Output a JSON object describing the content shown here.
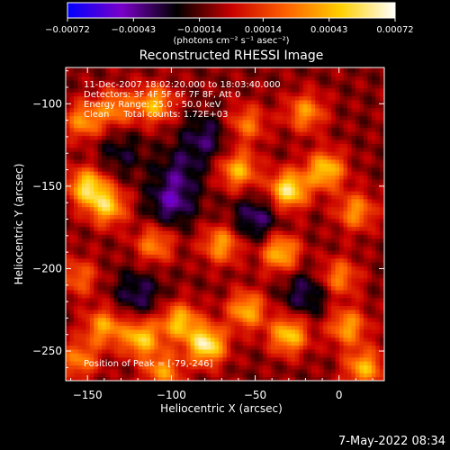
{
  "chart_data": {
    "type": "heatmap",
    "title": "Reconstructed RHESSI Image",
    "xlabel": "Heliocentric X (arcsec)",
    "ylabel": "Heliocentric Y (arcsec)",
    "xlim": [
      -163,
      27
    ],
    "ylim": [
      -268,
      -78
    ],
    "x_ticks": [
      -150,
      -100,
      -50,
      0
    ],
    "y_ticks": [
      -100,
      -150,
      -200,
      -250
    ],
    "x_tick_labels": [
      "−150",
      "−100",
      "−50",
      "0"
    ],
    "y_tick_labels": [
      "−100",
      "−150",
      "−200",
      "−250"
    ],
    "colorbar": {
      "range": [
        -0.00072,
        0.00072
      ],
      "ticks": [
        -0.00072,
        -0.00043,
        -0.00014,
        0.00014,
        0.00043,
        0.00072
      ],
      "tick_labels": [
        "−0.00072",
        "−0.00043",
        "−0.00014",
        "0.00014",
        "0.00043",
        "0.00072"
      ],
      "unit_label": "(photons cm⁻² s⁻¹ asec⁻²)",
      "colors": [
        "#0000ff",
        "#7a00c8",
        "#000000",
        "#c80000",
        "#ff6000",
        "#ffd000",
        "#ffffff"
      ]
    },
    "annotations": [
      "11-Dec-2007 18:02:20.000 to 18:03:40.000",
      "Detectors: 3F 4F 5F 6F 7F 8F, Att 0",
      "Energy Range: 25.0 - 50.0 keV",
      "Clean     Total counts: 1.72E+03"
    ],
    "peak_label": "Position of Peak = [-79,-246]",
    "peak": [
      -79,
      -246
    ],
    "hotspots": [
      {
        "x": -152,
        "y": -110,
        "v": 0.6
      },
      {
        "x": -133,
        "y": -102,
        "v": 0.55
      },
      {
        "x": -110,
        "y": -100,
        "v": 0.7
      },
      {
        "x": -55,
        "y": -112,
        "v": 0.5
      },
      {
        "x": -20,
        "y": -105,
        "v": 0.6
      },
      {
        "x": -150,
        "y": -150,
        "v": 0.85
      },
      {
        "x": -138,
        "y": -162,
        "v": 0.75
      },
      {
        "x": -60,
        "y": -140,
        "v": 0.7
      },
      {
        "x": -30,
        "y": -152,
        "v": 0.95
      },
      {
        "x": -8,
        "y": -140,
        "v": 0.8
      },
      {
        "x": 10,
        "y": -165,
        "v": 0.6
      },
      {
        "x": -110,
        "y": -185,
        "v": 0.55
      },
      {
        "x": -70,
        "y": -185,
        "v": 0.65
      },
      {
        "x": -35,
        "y": -190,
        "v": 0.75
      },
      {
        "x": 0,
        "y": -205,
        "v": 0.55
      },
      {
        "x": -155,
        "y": -205,
        "v": 0.45
      },
      {
        "x": -140,
        "y": -235,
        "v": 0.65
      },
      {
        "x": -118,
        "y": -242,
        "v": 0.8
      },
      {
        "x": -95,
        "y": -232,
        "v": 0.75
      },
      {
        "x": -79,
        "y": -246,
        "v": 1.0
      },
      {
        "x": -55,
        "y": -225,
        "v": 0.7
      },
      {
        "x": -30,
        "y": -240,
        "v": 0.8
      },
      {
        "x": 5,
        "y": -235,
        "v": 0.65
      },
      {
        "x": 15,
        "y": -260,
        "v": 0.7
      },
      {
        "x": -155,
        "y": -255,
        "v": 0.55
      },
      {
        "x": -105,
        "y": -262,
        "v": 0.6
      }
    ],
    "coldspots": [
      {
        "x": -100,
        "y": -160,
        "v": -0.45
      },
      {
        "x": -80,
        "y": -120,
        "v": -0.35
      },
      {
        "x": -50,
        "y": -170,
        "v": -0.4
      },
      {
        "x": -120,
        "y": -215,
        "v": -0.35
      },
      {
        "x": -20,
        "y": -215,
        "v": -0.35
      },
      {
        "x": -95,
        "y": -140,
        "v": -0.3
      },
      {
        "x": -130,
        "y": -130,
        "v": -0.25
      }
    ]
  },
  "footer": {
    "timestamp": "7-May-2022 08:34"
  }
}
